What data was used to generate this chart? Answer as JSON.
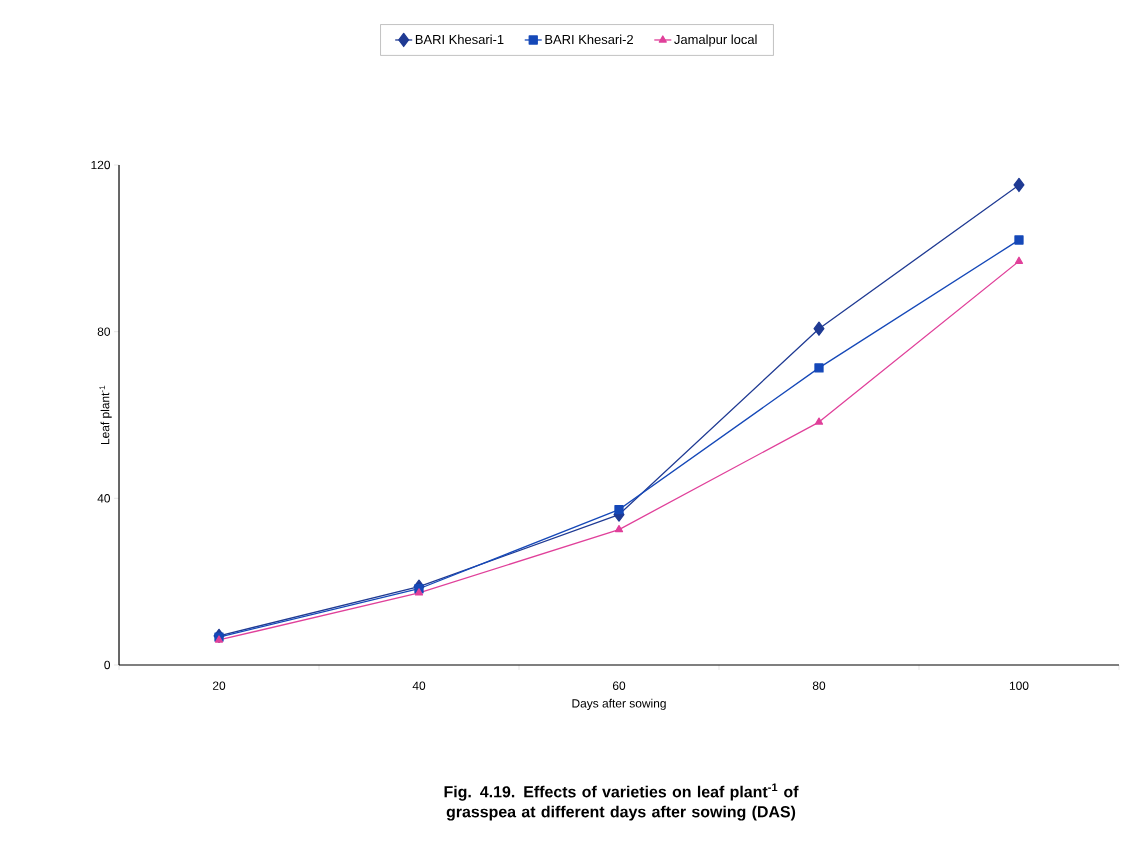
{
  "chart_data": {
    "type": "line",
    "title": "Fig. 4.19. Effects of varieties on leaf plant$^{-1}$ of grasspea at different days after sowing (DAS)",
    "xlabel": "Days after sowing",
    "ylabel": "Leaf plant$^{-1}$",
    "categories": [
      "20",
      "40",
      "60",
      "80",
      "100"
    ],
    "series": [
      {
        "name": "BARI Khesari-1",
        "color": "#1f3a93",
        "marker": "diamond",
        "values": [
          7,
          18.8,
          36.1,
          80.7,
          115.2
        ]
      },
      {
        "name": "BARI Khesari-2",
        "color": "#1548b8",
        "marker": "square",
        "values": [
          6.7,
          18.3,
          37.3,
          71.3,
          102
        ]
      },
      {
        "name": "Jamalpur local",
        "color": "#e0409a",
        "marker": "triangle",
        "values": [
          6,
          17.3,
          32.5,
          58.3,
          96.9
        ]
      }
    ],
    "ylim": [
      0,
      120
    ],
    "yticks": [
      0,
      40,
      80,
      120
    ],
    "grid": false,
    "legend": "top",
    "line_style": "solid"
  }
}
